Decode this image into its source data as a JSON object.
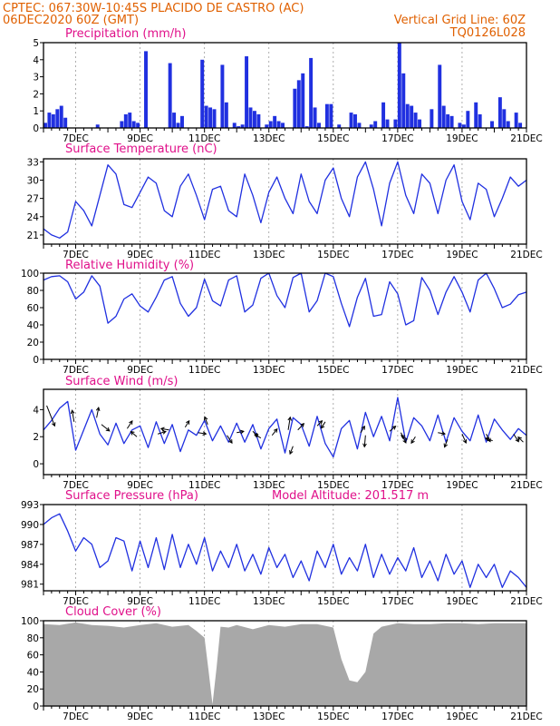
{
  "header": {
    "line1_left": "CPTEC:   067:30W-10:45S   PLACIDO DE CASTRO (AC)",
    "line2_left": "06DEC2020 60Z (GMT)",
    "line2_right": "Vertical Grid Line: 60Z",
    "line3_right": "TQ0126L028"
  },
  "colors": {
    "header": "#e06000",
    "title": "#e0108a",
    "series": "#2030e0",
    "cloud": "#a8a8a8"
  },
  "chart_data": [
    {
      "id": "precip",
      "type": "bar",
      "title": "Precipitation (mm/h)",
      "x_range": [
        6.0,
        21.0
      ],
      "ylim": [
        0,
        5
      ],
      "yticks": [
        0,
        1,
        2,
        3,
        4,
        5
      ],
      "xticks": [
        {
          "x": 7,
          "label": "7DEC"
        },
        {
          "x": 9,
          "label": "9DEC"
        },
        {
          "x": 11,
          "label": "11DEC"
        },
        {
          "x": 13,
          "label": "13DEC"
        },
        {
          "x": 15,
          "label": "15DEC"
        },
        {
          "x": 17,
          "label": "17DEC"
        },
        {
          "x": 19,
          "label": "19DEC"
        },
        {
          "x": 21,
          "label": "21DEC"
        }
      ],
      "x": [
        6.0,
        6.125,
        6.25,
        6.375,
        6.5,
        6.625,
        7.625,
        8.375,
        8.5,
        8.625,
        8.75,
        8.875,
        9.125,
        9.875,
        10.0,
        10.125,
        10.25,
        10.875,
        11.0,
        11.125,
        11.25,
        11.5,
        11.625,
        11.875,
        12.0,
        12.125,
        12.25,
        12.375,
        12.5,
        12.625,
        12.875,
        13.0,
        13.125,
        13.25,
        13.375,
        13.75,
        13.875,
        14.0,
        14.125,
        14.25,
        14.375,
        14.5,
        14.75,
        14.875,
        15.125,
        15.5,
        15.625,
        15.75,
        16.125,
        16.25,
        16.5,
        16.625,
        16.875,
        17.0,
        17.125,
        17.25,
        17.375,
        17.5,
        17.625,
        18.0,
        18.25,
        18.375,
        18.5,
        18.625,
        18.875,
        19.0,
        19.125,
        19.375,
        19.5,
        19.875,
        20.125,
        20.25,
        20.375,
        20.625,
        20.75
      ],
      "values": [
        0.3,
        0.9,
        0.8,
        1.1,
        1.3,
        0.6,
        0.2,
        0.4,
        0.8,
        0.9,
        0.4,
        0.3,
        4.5,
        3.8,
        0.9,
        0.3,
        0.7,
        4.0,
        1.3,
        1.2,
        1.1,
        3.7,
        1.5,
        0.3,
        0.1,
        0.2,
        4.2,
        1.2,
        1.0,
        0.8,
        0.2,
        0.4,
        0.7,
        0.4,
        0.3,
        2.3,
        2.8,
        3.2,
        0.1,
        4.1,
        1.2,
        0.3,
        1.4,
        1.4,
        0.2,
        0.9,
        0.8,
        0.3,
        0.2,
        0.4,
        1.5,
        0.5,
        0.5,
        5.0,
        3.2,
        1.4,
        1.3,
        0.9,
        0.5,
        1.1,
        3.7,
        1.3,
        0.8,
        0.7,
        0.3,
        0.2,
        1.0,
        1.5,
        0.8,
        0.4,
        1.8,
        1.1,
        0.4,
        0.9,
        0.3
      ]
    },
    {
      "id": "temp",
      "type": "line",
      "title": "Surface Temperature (nC)",
      "x_range": [
        6.0,
        21.0
      ],
      "ylim": [
        19.5,
        33.5
      ],
      "yticks": [
        21,
        24,
        27,
        30,
        33
      ],
      "xticks": [
        {
          "x": 7,
          "label": "7DEC"
        },
        {
          "x": 9,
          "label": "9DEC"
        },
        {
          "x": 11,
          "label": "11DEC"
        },
        {
          "x": 13,
          "label": "13DEC"
        },
        {
          "x": 15,
          "label": "15DEC"
        },
        {
          "x": 17,
          "label": "17DEC"
        },
        {
          "x": 19,
          "label": "19DEC"
        },
        {
          "x": 21,
          "label": "21DEC"
        }
      ],
      "x": [
        6.0,
        6.25,
        6.5,
        6.75,
        7.0,
        7.25,
        7.5,
        7.75,
        8.0,
        8.25,
        8.5,
        8.75,
        9.0,
        9.25,
        9.5,
        9.75,
        10.0,
        10.25,
        10.5,
        10.75,
        11.0,
        11.25,
        11.5,
        11.75,
        12.0,
        12.25,
        12.5,
        12.75,
        13.0,
        13.25,
        13.5,
        13.75,
        14.0,
        14.25,
        14.5,
        14.75,
        15.0,
        15.25,
        15.5,
        15.75,
        16.0,
        16.25,
        16.5,
        16.75,
        17.0,
        17.25,
        17.5,
        17.75,
        18.0,
        18.25,
        18.5,
        18.75,
        19.0,
        19.25,
        19.5,
        19.75,
        20.0,
        20.25,
        20.5,
        20.75,
        21.0
      ],
      "values": [
        22.0,
        21.0,
        20.5,
        21.5,
        26.5,
        25.0,
        22.5,
        27.5,
        32.5,
        31.0,
        26.0,
        25.5,
        28.0,
        30.5,
        29.5,
        25.0,
        24.0,
        29.0,
        31.0,
        27.5,
        23.5,
        28.5,
        29.0,
        25.0,
        24.0,
        31.0,
        27.5,
        23.0,
        28.0,
        30.5,
        27.0,
        24.5,
        31.0,
        26.5,
        24.5,
        30.0,
        32.0,
        27.0,
        24.0,
        30.5,
        33.0,
        28.5,
        22.5,
        29.5,
        33.0,
        27.5,
        24.5,
        31.0,
        29.5,
        24.5,
        30.0,
        32.5,
        26.5,
        23.5,
        29.5,
        28.5,
        24.0,
        27.0,
        30.5,
        29.0,
        30.0
      ]
    },
    {
      "id": "rh",
      "type": "line",
      "title": "Relative Humidity (%)",
      "x_range": [
        6.0,
        21.0
      ],
      "ylim": [
        0,
        100
      ],
      "yticks": [
        0,
        20,
        40,
        60,
        80,
        100
      ],
      "xticks": [
        {
          "x": 7,
          "label": "7DEC"
        },
        {
          "x": 9,
          "label": "9DEC"
        },
        {
          "x": 11,
          "label": "11DEC"
        },
        {
          "x": 13,
          "label": "13DEC"
        },
        {
          "x": 15,
          "label": "15DEC"
        },
        {
          "x": 17,
          "label": "17DEC"
        },
        {
          "x": 19,
          "label": "19DEC"
        },
        {
          "x": 21,
          "label": "21DEC"
        }
      ],
      "x": [
        6.0,
        6.25,
        6.5,
        6.75,
        7.0,
        7.25,
        7.5,
        7.75,
        8.0,
        8.25,
        8.5,
        8.75,
        9.0,
        9.25,
        9.5,
        9.75,
        10.0,
        10.25,
        10.5,
        10.75,
        11.0,
        11.25,
        11.5,
        11.75,
        12.0,
        12.25,
        12.5,
        12.75,
        13.0,
        13.25,
        13.5,
        13.75,
        14.0,
        14.25,
        14.5,
        14.75,
        15.0,
        15.25,
        15.5,
        15.75,
        16.0,
        16.25,
        16.5,
        16.75,
        17.0,
        17.25,
        17.5,
        17.75,
        18.0,
        18.25,
        18.5,
        18.75,
        19.0,
        19.25,
        19.5,
        19.75,
        20.0,
        20.25,
        20.5,
        20.75,
        21.0
      ],
      "values": [
        92,
        96,
        97,
        90,
        70,
        78,
        97,
        85,
        42,
        50,
        70,
        76,
        62,
        55,
        72,
        92,
        96,
        65,
        50,
        60,
        93,
        68,
        62,
        92,
        97,
        55,
        63,
        94,
        100,
        74,
        60,
        95,
        100,
        55,
        68,
        100,
        96,
        65,
        38,
        72,
        94,
        50,
        52,
        90,
        76,
        40,
        45,
        95,
        80,
        52,
        78,
        96,
        78,
        55,
        92,
        100,
        82,
        60,
        64,
        75,
        78
      ]
    },
    {
      "id": "wind",
      "type": "line",
      "title": "Surface Wind (m/s)",
      "x_range": [
        6.0,
        21.0
      ],
      "ylim": [
        -0.8,
        5.5
      ],
      "yticks": [
        0,
        2,
        4
      ],
      "xticks": [
        {
          "x": 7,
          "label": "7DEC"
        },
        {
          "x": 9,
          "label": "9DEC"
        },
        {
          "x": 11,
          "label": "11DEC"
        },
        {
          "x": 13,
          "label": "13DEC"
        },
        {
          "x": 15,
          "label": "15DEC"
        },
        {
          "x": 17,
          "label": "17DEC"
        },
        {
          "x": 19,
          "label": "19DEC"
        },
        {
          "x": 21,
          "label": "21DEC"
        }
      ],
      "x": [
        6.0,
        6.25,
        6.5,
        6.75,
        7.0,
        7.25,
        7.5,
        7.75,
        8.0,
        8.25,
        8.5,
        8.75,
        9.0,
        9.25,
        9.5,
        9.75,
        10.0,
        10.25,
        10.5,
        10.75,
        11.0,
        11.25,
        11.5,
        11.75,
        12.0,
        12.25,
        12.5,
        12.75,
        13.0,
        13.25,
        13.5,
        13.75,
        14.0,
        14.25,
        14.5,
        14.75,
        15.0,
        15.25,
        15.5,
        15.75,
        16.0,
        16.25,
        16.5,
        16.75,
        17.0,
        17.25,
        17.5,
        17.75,
        18.0,
        18.25,
        18.5,
        18.75,
        19.0,
        19.25,
        19.5,
        19.75,
        20.0,
        20.25,
        20.5,
        20.75,
        21.0
      ],
      "values": [
        2.5,
        3.2,
        4.1,
        4.6,
        1.0,
        2.5,
        4.0,
        2.2,
        1.4,
        3.0,
        1.5,
        2.5,
        2.8,
        1.2,
        3.1,
        1.5,
        2.9,
        0.9,
        2.5,
        2.1,
        3.2,
        1.7,
        2.8,
        1.6,
        3.0,
        1.6,
        2.9,
        1.1,
        2.6,
        3.3,
        0.8,
        3.4,
        2.9,
        1.3,
        3.5,
        1.5,
        0.5,
        2.6,
        3.2,
        1.1,
        3.8,
        2.0,
        3.5,
        1.7,
        4.9,
        1.6,
        3.4,
        2.8,
        1.7,
        3.6,
        1.6,
        3.4,
        2.4,
        1.7,
        3.6,
        1.6,
        3.3,
        2.5,
        1.8,
        2.6,
        2.1
      ],
      "arrows": [
        {
          "x": 6.1,
          "y": 4.3,
          "dx": 0.8,
          "dy": -1.6
        },
        {
          "x": 6.95,
          "y": 3.1,
          "dx": -0.2,
          "dy": 0.9
        },
        {
          "x": 7.65,
          "y": 3.4,
          "dx": 0.2,
          "dy": 0.8
        },
        {
          "x": 7.8,
          "y": 2.9,
          "dx": 0.8,
          "dy": -0.5
        },
        {
          "x": 8.6,
          "y": 2.6,
          "dx": 0.5,
          "dy": 0.6
        },
        {
          "x": 8.9,
          "y": 2.0,
          "dx": -0.6,
          "dy": 0.4
        },
        {
          "x": 9.55,
          "y": 2.2,
          "dx": 0.8,
          "dy": 0.2
        },
        {
          "x": 9.9,
          "y": 2.5,
          "dx": -0.8,
          "dy": 0.1
        },
        {
          "x": 10.4,
          "y": 2.7,
          "dx": 0.4,
          "dy": 0.5
        },
        {
          "x": 10.8,
          "y": 2.3,
          "dx": 0.8,
          "dy": -0.1
        },
        {
          "x": 11.1,
          "y": 2.9,
          "dx": -0.3,
          "dy": 0.6
        },
        {
          "x": 11.7,
          "y": 2.1,
          "dx": 0.5,
          "dy": -0.6
        },
        {
          "x": 12.0,
          "y": 2.3,
          "dx": 0.7,
          "dy": 0.1
        },
        {
          "x": 12.5,
          "y": 2.4,
          "dx": 0.5,
          "dy": -0.4
        },
        {
          "x": 12.75,
          "y": 1.9,
          "dx": -0.6,
          "dy": 0.3
        },
        {
          "x": 13.1,
          "y": 2.1,
          "dx": 0.5,
          "dy": 0.5
        },
        {
          "x": 13.6,
          "y": 2.5,
          "dx": 0.2,
          "dy": 1.0
        },
        {
          "x": 13.75,
          "y": 1.3,
          "dx": -0.3,
          "dy": -0.6
        },
        {
          "x": 13.9,
          "y": 2.5,
          "dx": 0.6,
          "dy": 0.5
        },
        {
          "x": 14.5,
          "y": 2.8,
          "dx": 0.5,
          "dy": 0.4
        },
        {
          "x": 14.75,
          "y": 3.1,
          "dx": -0.4,
          "dy": -0.5
        },
        {
          "x": 15.85,
          "y": 2.3,
          "dx": 0.4,
          "dy": 0.5
        },
        {
          "x": 16.0,
          "y": 2.1,
          "dx": -0.1,
          "dy": -0.9
        },
        {
          "x": 16.75,
          "y": 2.4,
          "dx": 0.6,
          "dy": 0.4
        },
        {
          "x": 17.1,
          "y": 2.3,
          "dx": 0.5,
          "dy": -0.8
        },
        {
          "x": 17.3,
          "y": 1.8,
          "dx": -0.6,
          "dy": 0.3
        },
        {
          "x": 17.55,
          "y": 2.0,
          "dx": -0.4,
          "dy": -0.5
        },
        {
          "x": 18.25,
          "y": 2.3,
          "dx": 0.7,
          "dy": -0.1
        },
        {
          "x": 18.55,
          "y": 1.8,
          "dx": -0.3,
          "dy": -0.6
        },
        {
          "x": 19.0,
          "y": 2.2,
          "dx": 0.4,
          "dy": -0.7
        },
        {
          "x": 19.75,
          "y": 2.2,
          "dx": 0.4,
          "dy": -0.6
        },
        {
          "x": 19.95,
          "y": 1.7,
          "dx": -0.7,
          "dy": 0.2
        },
        {
          "x": 20.6,
          "y": 2.2,
          "dx": 0.5,
          "dy": -0.6
        },
        {
          "x": 20.9,
          "y": 1.6,
          "dx": -0.5,
          "dy": 0.4
        }
      ]
    },
    {
      "id": "pressure",
      "type": "line",
      "title": "Surface Pressure (hPa)",
      "annotation": "Model Altitude: 201.517 m",
      "x_range": [
        6.0,
        21.0
      ],
      "ylim": [
        980.0,
        993.0
      ],
      "yticks": [
        981,
        984,
        987,
        990,
        993
      ],
      "xticks": [
        {
          "x": 7,
          "label": "7DEC"
        },
        {
          "x": 9,
          "label": "9DEC"
        },
        {
          "x": 11,
          "label": "11DEC"
        },
        {
          "x": 13,
          "label": "13DEC"
        },
        {
          "x": 15,
          "label": "15DEC"
        },
        {
          "x": 17,
          "label": "17DEC"
        },
        {
          "x": 19,
          "label": "19DEC"
        },
        {
          "x": 21,
          "label": "21DEC"
        }
      ],
      "x": [
        6.0,
        6.25,
        6.5,
        6.75,
        7.0,
        7.25,
        7.5,
        7.75,
        8.0,
        8.25,
        8.5,
        8.75,
        9.0,
        9.25,
        9.5,
        9.75,
        10.0,
        10.25,
        10.5,
        10.75,
        11.0,
        11.25,
        11.5,
        11.75,
        12.0,
        12.25,
        12.5,
        12.75,
        13.0,
        13.25,
        13.5,
        13.75,
        14.0,
        14.25,
        14.5,
        14.75,
        15.0,
        15.25,
        15.5,
        15.75,
        16.0,
        16.25,
        16.5,
        16.75,
        17.0,
        17.25,
        17.5,
        17.75,
        18.0,
        18.25,
        18.5,
        18.75,
        19.0,
        19.25,
        19.5,
        19.75,
        20.0,
        20.25,
        20.5,
        20.75,
        21.0
      ],
      "values": [
        990.0,
        991.0,
        991.6,
        989.0,
        986.0,
        988.0,
        987.0,
        983.5,
        984.5,
        988.0,
        987.5,
        983.0,
        987.5,
        983.5,
        988.0,
        983.2,
        988.5,
        983.5,
        987.0,
        984.0,
        988.0,
        983.0,
        986.0,
        983.5,
        987.0,
        983.0,
        985.5,
        982.5,
        986.5,
        983.5,
        985.5,
        982.0,
        984.5,
        981.5,
        986.0,
        983.5,
        987.0,
        982.5,
        985.0,
        983.0,
        987.0,
        982.0,
        985.5,
        982.5,
        985.0,
        983.0,
        986.5,
        982.0,
        984.5,
        981.5,
        985.5,
        982.5,
        984.5,
        980.5,
        984.0,
        982.0,
        984.0,
        980.5,
        983.0,
        982.0,
        980.5
      ]
    },
    {
      "id": "cloud",
      "type": "area",
      "title": "Cloud Cover (%)",
      "x_range": [
        6.0,
        21.0
      ],
      "ylim": [
        0,
        100
      ],
      "yticks": [
        0,
        20,
        40,
        60,
        80,
        100
      ],
      "xticks": [
        {
          "x": 7,
          "label": "7DEC"
        },
        {
          "x": 9,
          "label": "9DEC"
        },
        {
          "x": 11,
          "label": "11DEC"
        },
        {
          "x": 13,
          "label": "13DEC"
        },
        {
          "x": 15,
          "label": "15DEC"
        },
        {
          "x": 17,
          "label": "17DEC"
        },
        {
          "x": 19,
          "label": "19DEC"
        },
        {
          "x": 21,
          "label": "21DEC"
        }
      ],
      "x": [
        6.0,
        6.5,
        7.0,
        7.5,
        8.0,
        8.5,
        9.0,
        9.5,
        10.0,
        10.5,
        10.75,
        11.0,
        11.125,
        11.25,
        11.375,
        11.5,
        11.75,
        12.0,
        12.5,
        13.0,
        13.5,
        14.0,
        14.5,
        15.0,
        15.25,
        15.5,
        15.75,
        16.0,
        16.25,
        16.5,
        17.0,
        17.5,
        18.0,
        18.5,
        19.0,
        19.5,
        20.0,
        20.5,
        21.0
      ],
      "values": [
        96,
        95,
        98,
        95,
        94,
        92,
        95,
        97,
        93,
        95,
        88,
        80,
        42,
        2,
        45,
        93,
        92,
        95,
        90,
        95,
        93,
        96,
        96,
        92,
        55,
        30,
        28,
        40,
        85,
        93,
        97,
        96,
        96,
        97,
        97,
        96,
        97,
        97,
        97
      ]
    }
  ]
}
